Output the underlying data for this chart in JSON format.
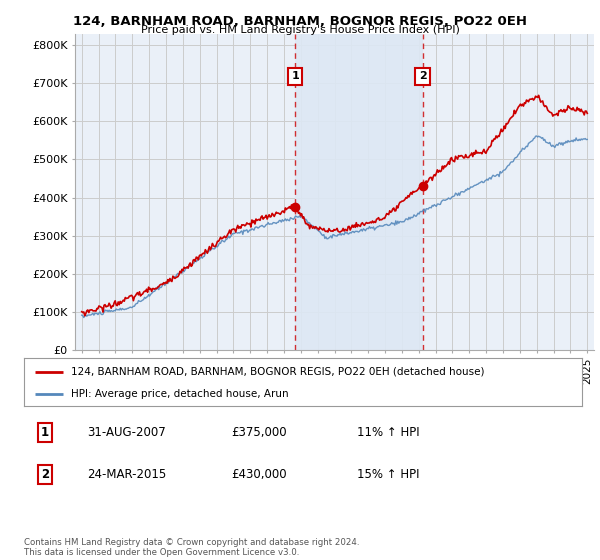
{
  "title": "124, BARNHAM ROAD, BARNHAM, BOGNOR REGIS, PO22 0EH",
  "subtitle": "Price paid vs. HM Land Registry's House Price Index (HPI)",
  "ylabel_ticks": [
    "£0",
    "£100K",
    "£200K",
    "£300K",
    "£400K",
    "£500K",
    "£600K",
    "£700K",
    "£800K"
  ],
  "ytick_values": [
    0,
    100000,
    200000,
    300000,
    400000,
    500000,
    600000,
    700000,
    800000
  ],
  "ylim": [
    0,
    830000
  ],
  "xlim_start": 1994.6,
  "xlim_end": 2025.4,
  "transaction1": {
    "date": 2007.66,
    "price": 375000,
    "label": "1",
    "pct": "11%"
  },
  "transaction2": {
    "date": 2015.23,
    "price": 430000,
    "label": "2",
    "pct": "15%"
  },
  "legend_line1": "124, BARNHAM ROAD, BARNHAM, BOGNOR REGIS, PO22 0EH (detached house)",
  "legend_line2": "HPI: Average price, detached house, Arun",
  "table_row1": [
    "1",
    "31-AUG-2007",
    "£375,000",
    "11% ↑ HPI"
  ],
  "table_row2": [
    "2",
    "24-MAR-2015",
    "£430,000",
    "15% ↑ HPI"
  ],
  "footer": "Contains HM Land Registry data © Crown copyright and database right 2024.\nThis data is licensed under the Open Government Licence v3.0.",
  "red_color": "#cc0000",
  "blue_color": "#5588bb",
  "shade_color": "#dde8f4",
  "grid_color": "#cccccc",
  "background_color": "#ffffff",
  "plot_bg_color": "#eaf0f8"
}
